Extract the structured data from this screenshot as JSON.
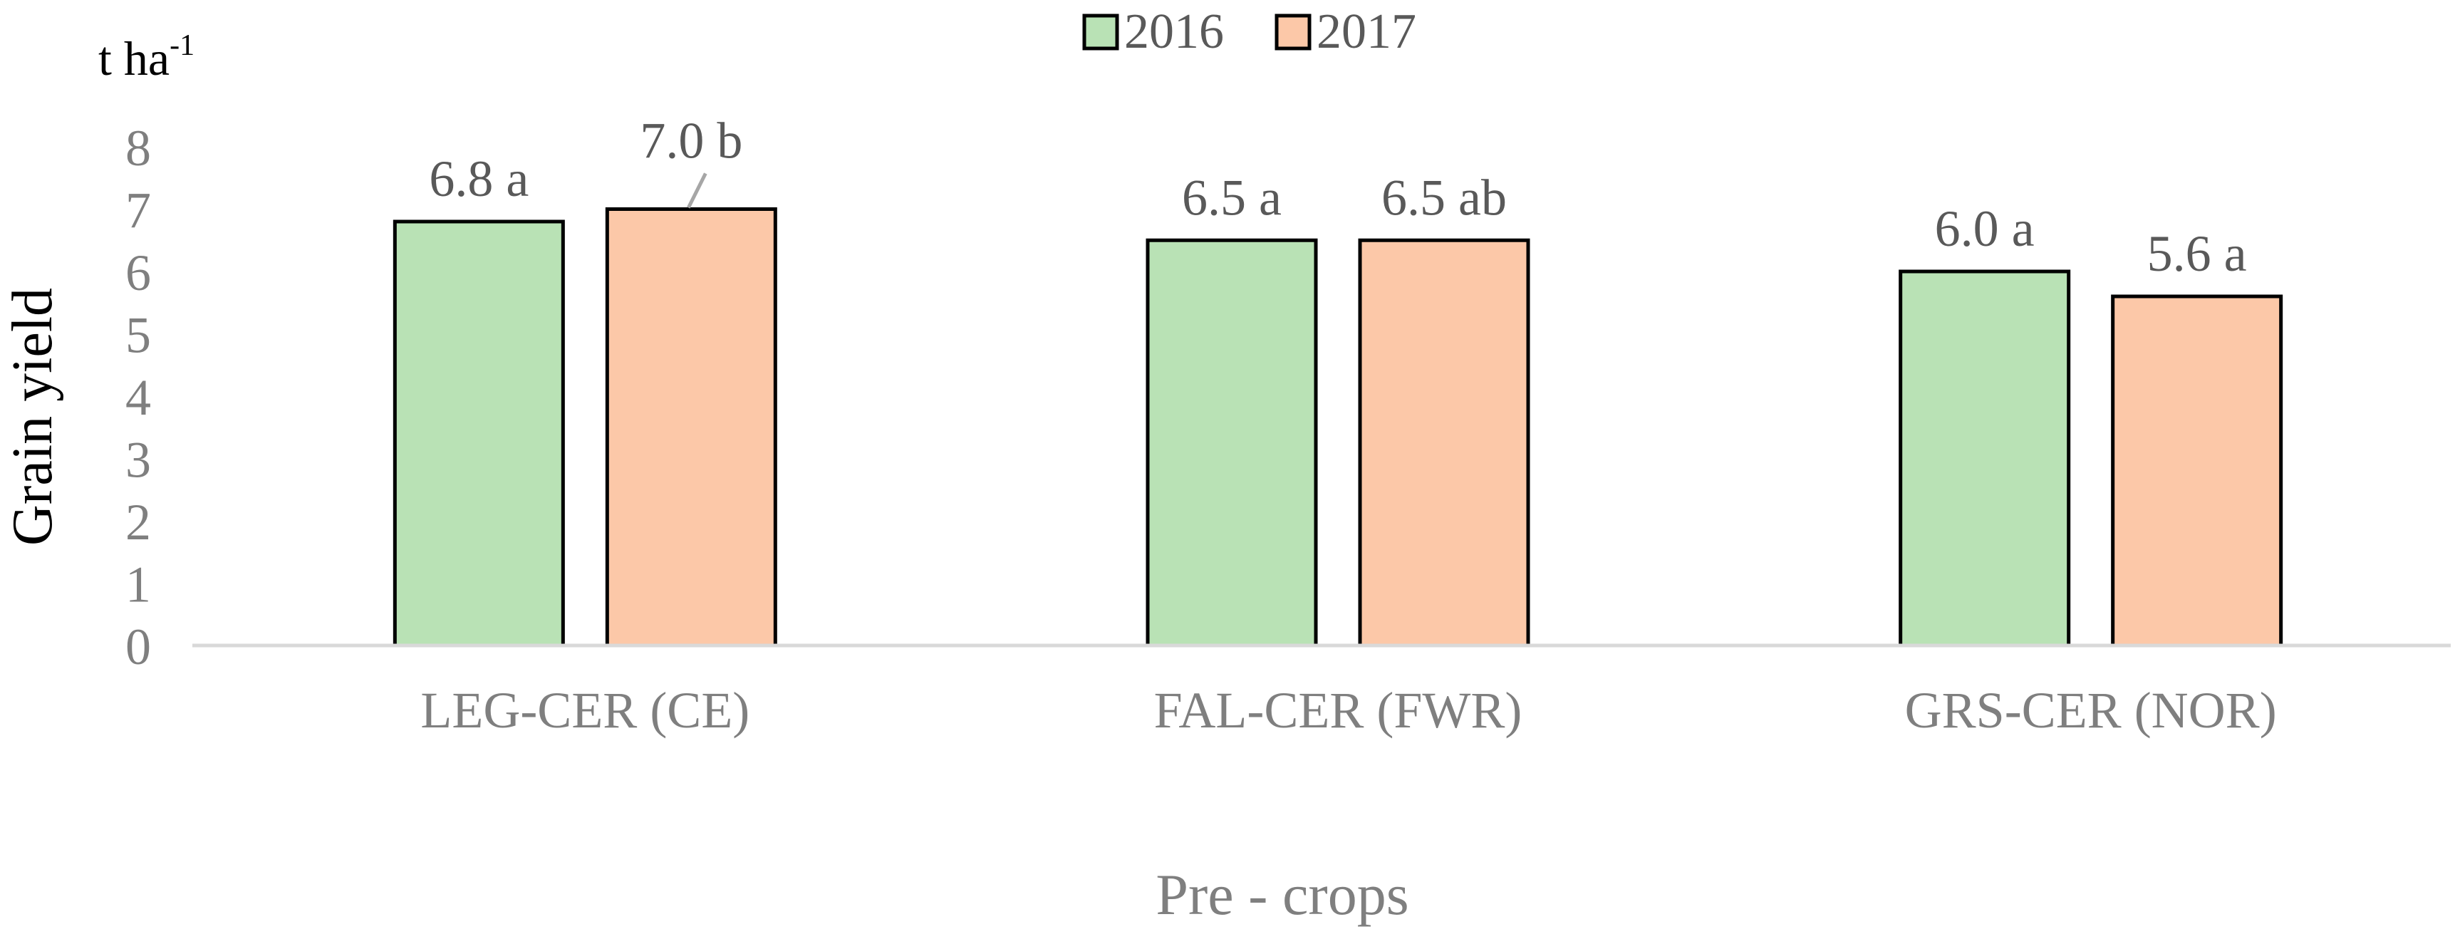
{
  "chart_data": {
    "type": "bar",
    "categories": [
      "LEG-CER (CE)",
      "FAL-CER (FWR)",
      "GRS-CER (NOR)"
    ],
    "series": [
      {
        "name": "2016",
        "values": [
          6.8,
          6.5,
          6.0
        ],
        "labels": [
          "6.8 a",
          "6.5 a",
          "6.0 a"
        ],
        "color": "#b9e2b5"
      },
      {
        "name": "2017",
        "values": [
          7.0,
          6.5,
          5.6
        ],
        "labels": [
          "7.0 b",
          "6.5 ab",
          "5.6 a"
        ],
        "color": "#fcc8a8"
      }
    ],
    "ylabel": "Grain yield",
    "yunit_base": "t ha",
    "yunit_sup": "-1",
    "xlabel": "Pre - crops",
    "ylim": [
      0,
      8
    ],
    "yticks": [
      "0",
      "1",
      "2",
      "3",
      "4",
      "5",
      "6",
      "7",
      "8"
    ],
    "grid": false,
    "legend_position": "top-center",
    "colors": {
      "axis": "#d9d9d9",
      "bar_edge": "#000000",
      "tick_text": "#7f7f7f",
      "label_text": "#595959",
      "leader_line": "#a6a6a6"
    }
  }
}
